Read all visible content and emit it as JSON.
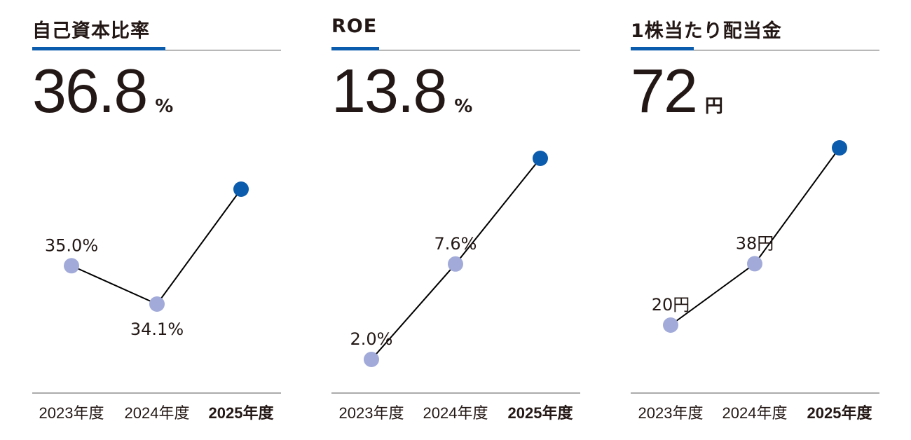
{
  "colors": {
    "accent": "#0b5cad",
    "past_point": "#a1aad9",
    "current_point": "#0b5cad",
    "line": "#000000",
    "text": "#231815",
    "rule": "#595757"
  },
  "panels": [
    {
      "title": "自己資本比率",
      "headline_value": "36.8",
      "headline_unit": "%",
      "accent_width": 190
    },
    {
      "title": "ROE",
      "headline_value": "13.8",
      "headline_unit": "%",
      "accent_width": 68
    },
    {
      "title": "1株当たり配当金",
      "headline_value": "72",
      "headline_unit": "円",
      "accent_width": 90
    }
  ],
  "chart_data": [
    {
      "type": "line",
      "title": "自己資本比率",
      "categories": [
        "2023年度",
        "2024年度",
        "2025年度"
      ],
      "values": [
        35.0,
        34.1,
        36.8
      ],
      "data_labels": [
        "35.0%",
        "34.1%",
        ""
      ],
      "unit": "%",
      "highlight_category": "2025年度",
      "grid": false
    },
    {
      "type": "line",
      "title": "ROE",
      "categories": [
        "2023年度",
        "2024年度",
        "2025年度"
      ],
      "values": [
        2.0,
        7.6,
        13.8
      ],
      "data_labels": [
        "2.0%",
        "7.6%",
        ""
      ],
      "unit": "%",
      "highlight_category": "2025年度",
      "grid": false
    },
    {
      "type": "line",
      "title": "1株当たり配当金",
      "categories": [
        "2023年度",
        "2024年度",
        "2025年度"
      ],
      "values": [
        20,
        38,
        72
      ],
      "data_labels": [
        "20円",
        "38円",
        ""
      ],
      "unit": "円",
      "highlight_category": "2025年度",
      "grid": false
    }
  ]
}
